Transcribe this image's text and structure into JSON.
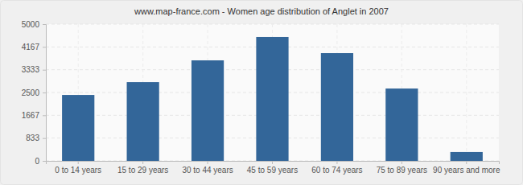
{
  "chart_data": {
    "type": "bar",
    "title": "www.map-france.com - Women age distribution of Anglet in 2007",
    "categories": [
      "0 to 14 years",
      "15 to 29 years",
      "30 to 44 years",
      "45 to 59 years",
      "60 to 74 years",
      "75 to 89 years",
      "90 years and more"
    ],
    "values": [
      2410,
      2880,
      3675,
      4530,
      3940,
      2645,
      325
    ],
    "color": "#336699",
    "ylim": [
      0,
      5000
    ],
    "yticks": [
      0,
      833,
      1667,
      2500,
      3333,
      4167,
      5000
    ],
    "grid": true
  }
}
